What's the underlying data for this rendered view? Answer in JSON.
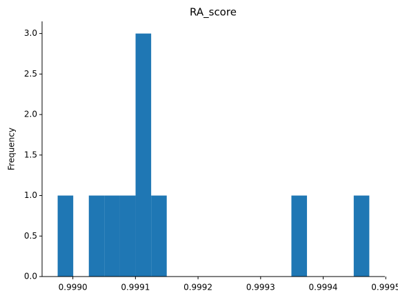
{
  "chart_data": {
    "type": "histogram",
    "title": "RA_score",
    "y_label": "Frequency",
    "bins": [
      0.9989757,
      0.9990006,
      0.9990255,
      0.9990504,
      0.9990753,
      0.9991002,
      0.9991251,
      0.99915,
      0.9991749,
      0.9991998,
      0.9992247,
      0.9992496,
      0.9992745,
      0.9992994,
      0.9993243,
      0.9993492,
      0.9993741,
      0.999399,
      0.9994239,
      0.9994488,
      0.9994737
    ],
    "values": [
      1,
      0,
      1,
      1,
      1,
      3,
      1,
      0,
      0,
      0,
      0,
      0,
      0,
      0,
      0,
      1,
      0,
      0,
      0,
      1
    ],
    "color": "#1f77b4",
    "xlim": [
      0.9989508,
      0.9994986
    ],
    "xticks": [
      {
        "value": 0.999,
        "label": "0.9990"
      },
      {
        "value": 0.9991,
        "label": "0.9991"
      },
      {
        "value": 0.9992,
        "label": "0.9992"
      },
      {
        "value": 0.9993,
        "label": "0.9993"
      },
      {
        "value": 0.9994,
        "label": "0.9994"
      },
      {
        "value": 0.9995,
        "label": "0.9995"
      }
    ],
    "ylim": [
      0,
      3.15
    ],
    "yticks": [
      {
        "value": 0,
        "label": "0.0"
      },
      {
        "value": 0.5,
        "label": "0.5"
      },
      {
        "value": 1,
        "label": "1.0"
      },
      {
        "value": 1.5,
        "label": "1.5"
      },
      {
        "value": 2,
        "label": "2.0"
      },
      {
        "value": 2.5,
        "label": "2.5"
      },
      {
        "value": 3,
        "label": "3.0"
      }
    ],
    "grid": false
  }
}
